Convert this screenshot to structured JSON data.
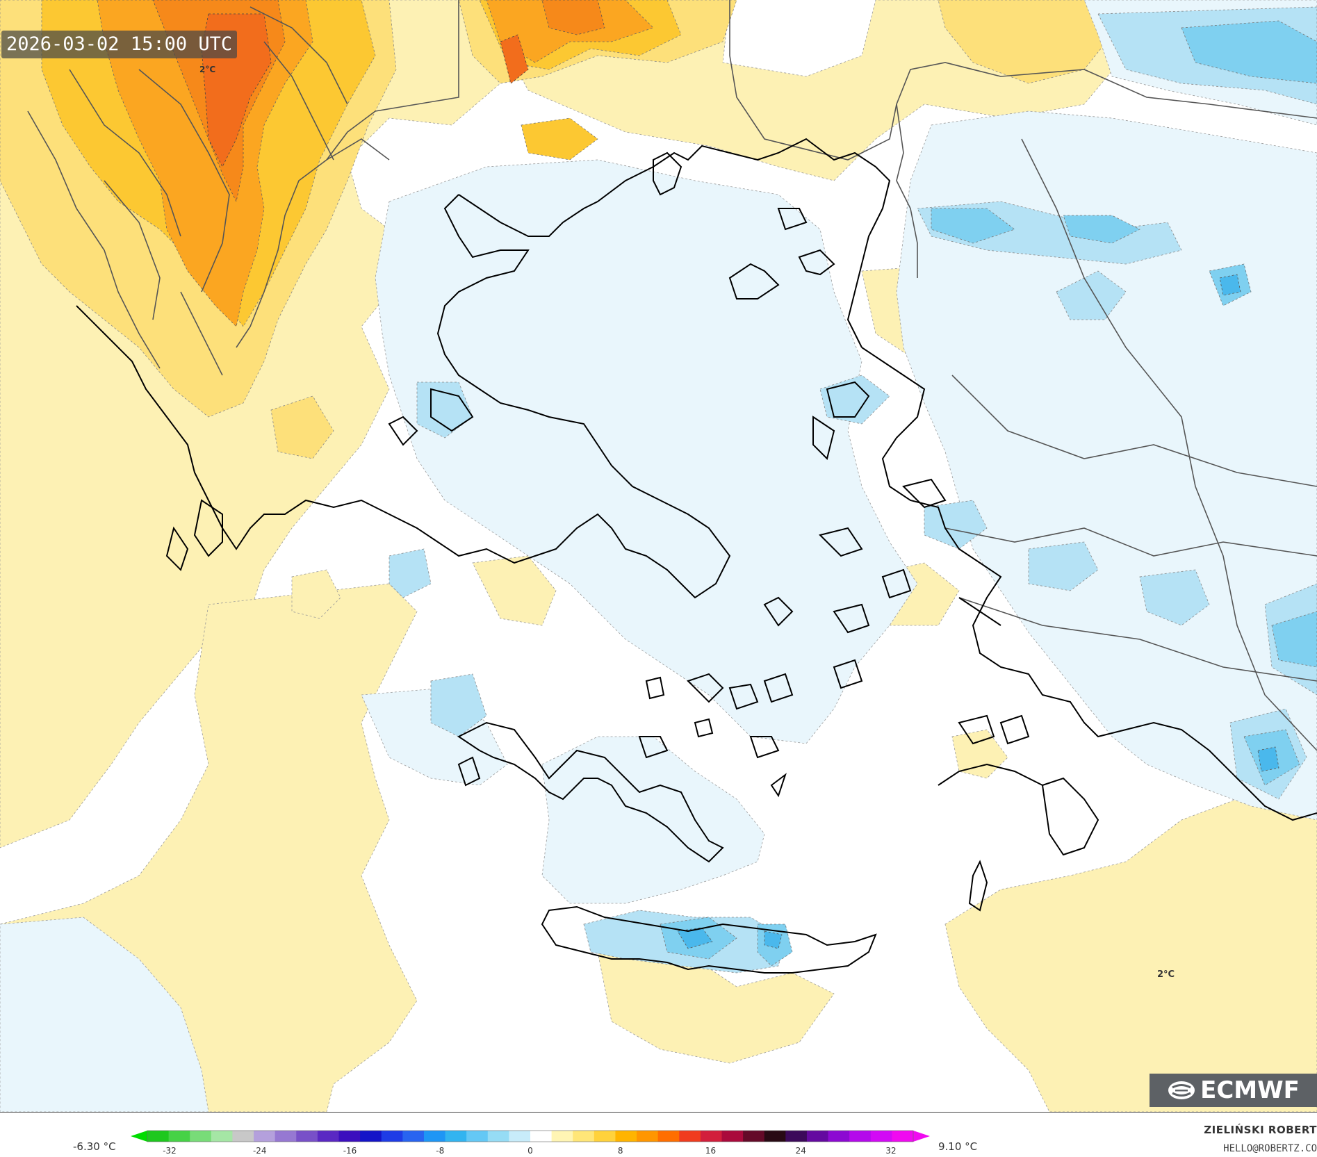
{
  "header": {
    "timestamp": "2026-03-02 15:00 UTC"
  },
  "map_labels": {
    "contour_a": "2°C",
    "contour_b": "2°C"
  },
  "branding": {
    "logo_text": "ECMWF",
    "author": "ZIELIŃSKI ROBERT",
    "email": "HELLO@ROBERTZ.CO"
  },
  "legend": {
    "min_label": "-6.30 °C",
    "max_label": "9.10 °C",
    "ticks": [
      "-32",
      "-24",
      "-16",
      "-8",
      "0",
      "8",
      "16",
      "24",
      "32"
    ],
    "colors": [
      "#1ec81e",
      "#46d246",
      "#78dc78",
      "#a5e6a5",
      "#c8c8c8",
      "#b4a0dc",
      "#9678d2",
      "#7850c8",
      "#5a28c3",
      "#3c0fbe",
      "#1414c8",
      "#1e3ce6",
      "#2864f0",
      "#1e96f5",
      "#32b4f0",
      "#64c8f5",
      "#96dcf5",
      "#c8ecfa",
      "#ffffff",
      "#fff5b4",
      "#ffe678",
      "#ffd23c",
      "#ffb400",
      "#ff9600",
      "#ff6e00",
      "#f03c1e",
      "#d21e3c",
      "#aa0a3c",
      "#640a28",
      "#280a14",
      "#3c0a5a",
      "#640aa0",
      "#8c0ad2",
      "#b40aeb",
      "#d20af5",
      "#f00af0"
    ],
    "arrow_left": "#00dc00",
    "arrow_right": "#f00af0"
  },
  "palette": {
    "sea": "#ffffff",
    "pale_blue": "#e9f6fc",
    "light_blue": "#b5e2f5",
    "mid_blue": "#7fd0f0",
    "deep_blue": "#4ab8ec",
    "pale_yellow": "#fdf1b4",
    "yellow": "#fde07a",
    "gold": "#fcc832",
    "orange": "#fba621",
    "dark_orange": "#f6891a",
    "red_orange": "#f26d1c",
    "coast": "#000000",
    "border": "#555555"
  }
}
